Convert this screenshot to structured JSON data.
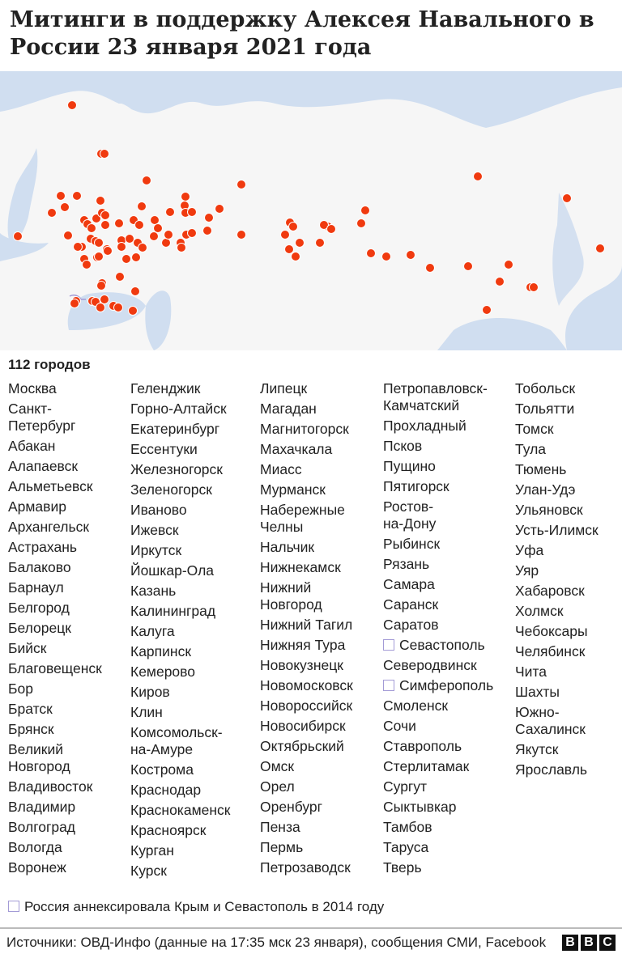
{
  "title": "Митинги в поддержку Алексея Навального в России 23 января 2021 года",
  "colors": {
    "dot": "#f03a0f",
    "water": "#d0def0",
    "land": "#f6f6f6",
    "crimea": "#a39bd6"
  },
  "count_label": "112 городов",
  "columns": [
    [
      "Москва",
      "Санкт-\nПетербург",
      "Абакан",
      "Алапаевск",
      "Альметьевск",
      "Армавир",
      "Архангельск",
      "Астрахань",
      "Балаково",
      "Барнаул",
      "Белгород",
      "Белорецк",
      "Бийск",
      "Благовещенск",
      "Бор",
      "Братск",
      "Брянск",
      "Великий\nНовгород",
      "Владивосток",
      "Владимир",
      "Волгоград",
      "Вологда",
      "Воронеж"
    ],
    [
      "Геленджик",
      "Горно-Алтайск",
      "Екатеринбург",
      "Ессентуки",
      "Железногорск",
      "Зеленогорск",
      "Иваново",
      "Ижевск",
      "Иркутск",
      "Йошкар-Ола",
      "Казань",
      "Калининград",
      "Калуга",
      "Карпинск",
      "Кемерово",
      "Киров",
      "Клин",
      "Комсомольск-\nна-Амуре",
      "Кострома",
      "Краснодар",
      "Краснокаменск",
      "Красноярск",
      "Курган",
      "Курск"
    ],
    [
      "Липецк",
      "Магадан",
      "Магнитогорск",
      "Махачкала",
      "Миасс",
      "Мурманск",
      "Набережные\nЧелны",
      "Нальчик",
      "Нижнекамск",
      "Нижний\nНовгород",
      "Нижний Тагил",
      "Нижняя Тура",
      "Новокузнецк",
      "Новомосковск",
      "Новороссийск",
      "Новосибирск",
      "Октябрьский",
      "Омск",
      "Орел",
      "Оренбург",
      "Пенза",
      "Пермь",
      "Петрозаводск"
    ],
    [
      "Петропавловск-\nКамчатский",
      "Прохладный",
      "Псков",
      "Пущино",
      "Пятигорск",
      "Ростов-\nна-Дону",
      "Рыбинск",
      "Рязань",
      "Самара",
      "Саранск",
      "Саратов",
      "Севастополь",
      "Северодвинск",
      "Симферополь",
      "Смоленск",
      "Сочи",
      "Ставрополь",
      "Стерлитамак",
      "Сургут",
      "Сыктывкар",
      "Тамбов",
      "Таруса",
      "Тверь"
    ],
    [
      "Тобольск",
      "Тольятти",
      "Томск",
      "Тула",
      "Тюмень",
      "Улан-Удэ",
      "Ульяновск",
      "Усть-Илимск",
      "Уфа",
      "Уяр",
      "Хабаровск",
      "Холмск",
      "Чебоксары",
      "Челябинск",
      "Чита",
      "Шахты",
      "Южно-\nСахалинск",
      "Якутск",
      "Ярославль"
    ]
  ],
  "crimea_marked": [
    "Севастополь",
    "Симферополь"
  ],
  "note": "Россия аннексировала Крым и Севастополь в 2014 году",
  "source": "Источники: ОВД-Инфо (данные на 17:35 мск 23 января), сообщения СМИ, Facebook",
  "logo": [
    "B",
    "B",
    "C"
  ]
}
